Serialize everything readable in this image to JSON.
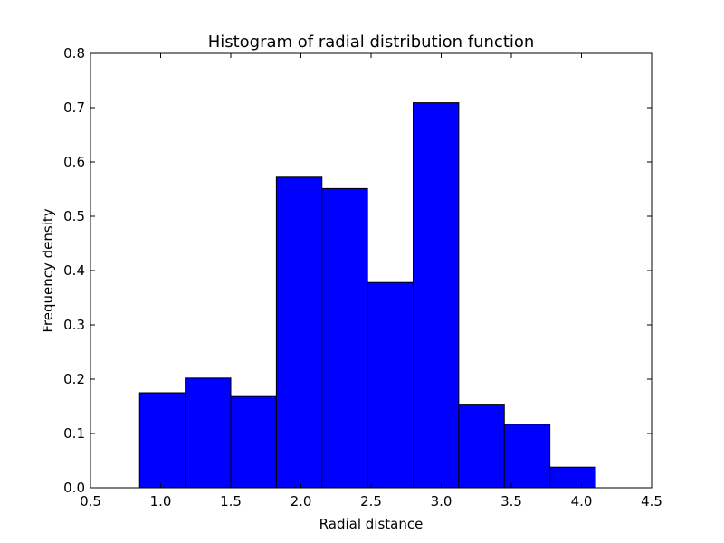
{
  "chart_data": {
    "type": "bar",
    "title": "Histogram of radial distribution function",
    "xlabel": "Radial distance",
    "ylabel": "Frequency density",
    "xlim": [
      0.5,
      4.5
    ],
    "ylim": [
      0.0,
      0.8
    ],
    "xticks": [
      "0.5",
      "1.0",
      "1.5",
      "2.0",
      "2.5",
      "3.0",
      "3.5",
      "4.0",
      "4.5"
    ],
    "yticks": [
      "0.0",
      "0.1",
      "0.2",
      "0.3",
      "0.4",
      "0.5",
      "0.6",
      "0.7",
      "0.8"
    ],
    "grid": false,
    "bins": [
      {
        "x0": 0.85,
        "x1": 1.175,
        "value": 0.175
      },
      {
        "x0": 1.175,
        "x1": 1.5,
        "value": 0.202
      },
      {
        "x0": 1.5,
        "x1": 1.825,
        "value": 0.168
      },
      {
        "x0": 1.825,
        "x1": 2.15,
        "value": 0.572
      },
      {
        "x0": 2.15,
        "x1": 2.475,
        "value": 0.551
      },
      {
        "x0": 2.475,
        "x1": 2.8,
        "value": 0.378
      },
      {
        "x0": 2.8,
        "x1": 3.125,
        "value": 0.709
      },
      {
        "x0": 3.125,
        "x1": 3.45,
        "value": 0.154
      },
      {
        "x0": 3.45,
        "x1": 3.775,
        "value": 0.117
      },
      {
        "x0": 3.775,
        "x1": 4.1,
        "value": 0.038
      }
    ],
    "bar_color": "#0000ff",
    "edge_color": "#000000"
  }
}
